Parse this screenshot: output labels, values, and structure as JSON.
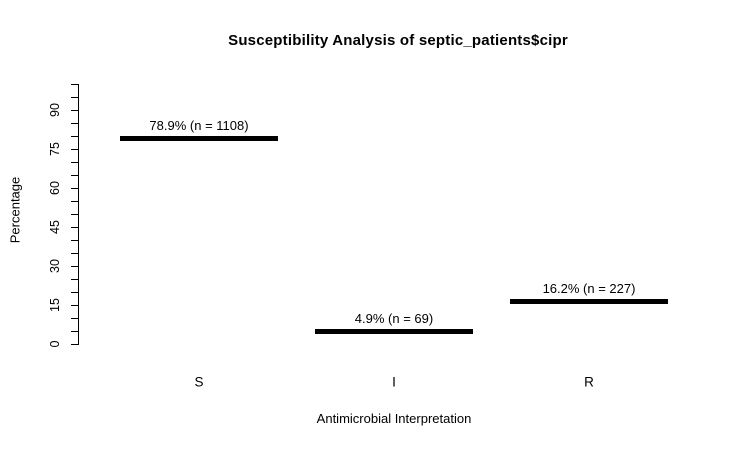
{
  "chart_data": {
    "type": "bar",
    "title": "Susceptibility Analysis of septic_patients$cipr",
    "xlabel": "Antimicrobial Interpretation",
    "ylabel": "Percentage",
    "categories": [
      "S",
      "I",
      "R"
    ],
    "series": [
      {
        "category": "S",
        "value": 78.9,
        "n": 1108,
        "label": "78.9% (n = 1108)"
      },
      {
        "category": "I",
        "value": 4.9,
        "n": 69,
        "label": "4.9% (n = 69)"
      },
      {
        "category": "R",
        "value": 16.2,
        "n": 227,
        "label": "16.2% (n = 227)"
      }
    ],
    "ylim": [
      0,
      100
    ],
    "y_minor_tick_step": 5,
    "y_labeled_ticks": [
      0,
      15,
      30,
      45,
      60,
      75,
      90
    ],
    "grid": false,
    "legend": "none",
    "bar_color": "#000000",
    "axis_color": "#000000",
    "text_color": "#000000",
    "background_color": "#ffffff"
  }
}
